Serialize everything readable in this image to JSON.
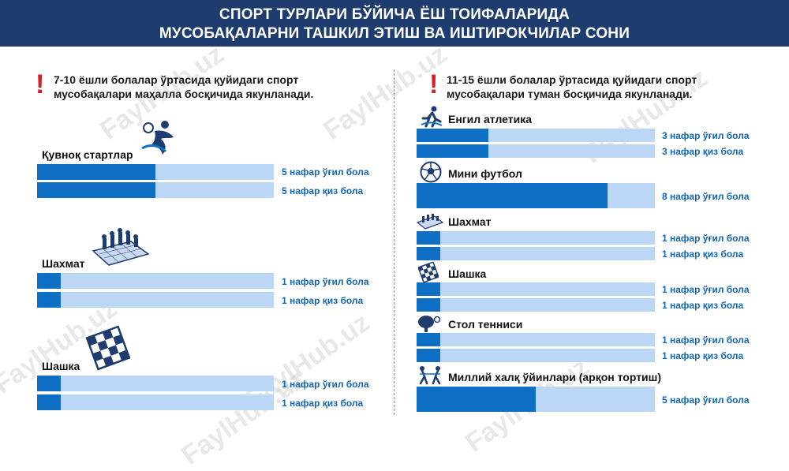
{
  "header": {
    "line1": "СПОРТ ТУРЛАРИ БЎЙИЧА ЁШ ТОИФАЛАРИДА",
    "line2": "МУСОБАҚАЛАРНИ ТАШКИЛ ЭТИШ ВА ИШТИРОКЧИЛАР СОНИ"
  },
  "left": {
    "note_line1": "7-10 ёшли болалар ўртасида қуйидаги спорт",
    "note_line2": "мусобақалари маҳалла босқичида якунланади."
  },
  "right": {
    "note_line1": "11-15 ёшли болалар ўртасида қуйидаги спорт",
    "note_line2": "мусобақалари туман босқичида якунланади."
  },
  "watermark": "FaylHub.uz",
  "colors": {
    "header": "#1f3c6e",
    "bar_fill": "#0f6fc4",
    "bar_track": "#bcd7f6",
    "label": "#1466b3",
    "alert": "#d81f26"
  },
  "chart_data": [
    {
      "type": "bar",
      "orientation": "horizontal",
      "groups": [
        {
          "title": "Қувноқ стартлар",
          "icon": "handball-player-icon",
          "bars": [
            {
              "value": 5,
              "label": "5 нафар ўғил бола"
            },
            {
              "value": 5,
              "label": "5 нафар қиз бола"
            }
          ]
        },
        {
          "title": "Шахмат",
          "icon": "chess-board-icon",
          "bars": [
            {
              "value": 1,
              "label": "1 нафар ўғил бола"
            },
            {
              "value": 1,
              "label": "1 нафар қиз бола"
            }
          ]
        },
        {
          "title": "Шашка",
          "icon": "checkers-board-icon",
          "bars": [
            {
              "value": 1,
              "label": "1 нафар ўғил бола"
            },
            {
              "value": 1,
              "label": "1 нафар қиз бола"
            }
          ]
        }
      ]
    },
    {
      "type": "bar",
      "orientation": "horizontal",
      "groups": [
        {
          "title": "Енгил атлетика",
          "icon": "runner-icon",
          "bars": [
            {
              "value": 3,
              "label": "3 нафар ўғил бола"
            },
            {
              "value": 3,
              "label": "3 нафар қиз бола"
            }
          ]
        },
        {
          "title": "Мини футбол",
          "icon": "soccer-ball-icon",
          "bars": [
            {
              "value": 8,
              "label": "8 нафар ўғил бола"
            }
          ]
        },
        {
          "title": "Шахмат",
          "icon": "chess-board-icon",
          "bars": [
            {
              "value": 1,
              "label": "1 нафар ўғил бола"
            },
            {
              "value": 1,
              "label": "1 нафар қиз бола"
            }
          ]
        },
        {
          "title": "Шашка",
          "icon": "checkers-board-icon",
          "bars": [
            {
              "value": 1,
              "label": "1 нафар ўғил бола"
            },
            {
              "value": 1,
              "label": "1 нафар қиз бола"
            }
          ]
        },
        {
          "title": "Стол тенниси",
          "icon": "table-tennis-icon",
          "bars": [
            {
              "value": 1,
              "label": "1 нафар ўғил бола"
            },
            {
              "value": 1,
              "label": "1 нафар қиз бола"
            }
          ]
        },
        {
          "title": "Миллий халқ ўйинлари (арқон тортиш)",
          "icon": "tug-of-war-icon",
          "bars": [
            {
              "value": 5,
              "label": "5 нафар ўғил бола"
            }
          ]
        }
      ]
    }
  ]
}
